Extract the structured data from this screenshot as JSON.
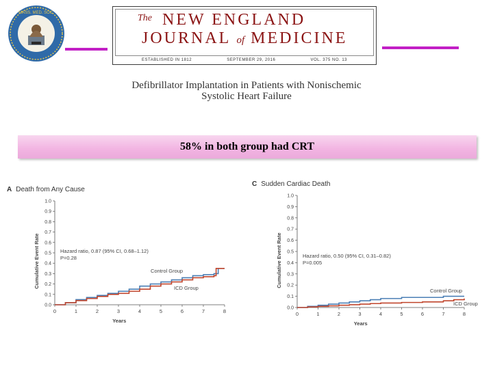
{
  "masthead": {
    "the": "The",
    "line1": "NEW ENGLAND",
    "line2_a": "JOURNAL",
    "line2_of": "of",
    "line2_b": "MEDICINE",
    "meta": [
      "ESTABLISHED IN 1812",
      "SEPTEMBER 29, 2016",
      "VOL. 375 NO. 13"
    ]
  },
  "article": {
    "title_line1": "Defibrillator Implantation in Patients with Nonischemic",
    "title_line2": "Systolic Heart Failure"
  },
  "banner": {
    "text": "58% in both group had CRT"
  },
  "colors": {
    "accent": "#c21fc5",
    "control": "#4a7fb5",
    "icd": "#c0452c",
    "banner": "#f2b4e2"
  },
  "chart_data": [
    {
      "type": "line",
      "panel": "A",
      "title": "Death from Any Cause",
      "xlabel": "Years",
      "ylabel": "Cumulative Event Rate",
      "xlim": [
        0,
        8
      ],
      "ylim": [
        0,
        1.0
      ],
      "x_ticks": [
        "0",
        "1",
        "2",
        "3",
        "4",
        "5",
        "6",
        "7",
        "8"
      ],
      "y_ticks": [
        "0.0",
        "0.1",
        "0.2",
        "0.3",
        "0.4",
        "0.5",
        "0.6",
        "0.7",
        "0.8",
        "0.9",
        "1.0"
      ],
      "annotation_line1": "Hazard ratio, 0.87 (95% CI, 0.68–1.12)",
      "annotation_line2": "P=0.28",
      "series": [
        {
          "name": "Control Group",
          "x": [
            0,
            0.5,
            1,
            1.5,
            2,
            2.5,
            3,
            3.5,
            4,
            4.5,
            5,
            5.5,
            6,
            6.5,
            7,
            7.5,
            7.7,
            8
          ],
          "y": [
            0,
            0.02,
            0.05,
            0.07,
            0.09,
            0.11,
            0.13,
            0.15,
            0.18,
            0.2,
            0.22,
            0.24,
            0.26,
            0.28,
            0.29,
            0.3,
            0.35,
            0.35
          ]
        },
        {
          "name": "ICD Group",
          "x": [
            0,
            0.5,
            1,
            1.5,
            2,
            2.5,
            3,
            3.5,
            4,
            4.5,
            5,
            5.5,
            6,
            6.5,
            7,
            7.5,
            7.6,
            8
          ],
          "y": [
            0,
            0.02,
            0.04,
            0.06,
            0.08,
            0.1,
            0.11,
            0.13,
            0.15,
            0.18,
            0.2,
            0.22,
            0.24,
            0.26,
            0.27,
            0.28,
            0.35,
            0.35
          ]
        }
      ]
    },
    {
      "type": "line",
      "panel": "C",
      "title": "Sudden Cardiac Death",
      "xlabel": "Years",
      "ylabel": "Cumulative Event Rate",
      "xlim": [
        0,
        8
      ],
      "ylim": [
        0,
        1.0
      ],
      "x_ticks": [
        "0",
        "1",
        "2",
        "3",
        "4",
        "5",
        "6",
        "7",
        "8"
      ],
      "y_ticks": [
        "0.0",
        "0.1",
        "0.2",
        "0.3",
        "0.4",
        "0.5",
        "0.6",
        "0.7",
        "0.8",
        "0.9",
        "1.0"
      ],
      "annotation_line1": "Hazard ratio, 0.50 (95% CI, 0.31–0.82)",
      "annotation_line2": "P=0.005",
      "series": [
        {
          "name": "Control Group",
          "x": [
            0,
            0.5,
            1,
            1.5,
            2,
            2.5,
            3,
            3.5,
            4,
            5,
            6,
            7,
            7.5,
            8
          ],
          "y": [
            0,
            0.01,
            0.02,
            0.03,
            0.04,
            0.05,
            0.06,
            0.07,
            0.08,
            0.09,
            0.09,
            0.1,
            0.1,
            0.1
          ]
        },
        {
          "name": "ICD Group",
          "x": [
            0,
            0.5,
            1,
            1.5,
            2,
            2.5,
            3,
            3.5,
            4,
            5,
            6,
            7,
            7.5,
            8
          ],
          "y": [
            0,
            0.005,
            0.01,
            0.015,
            0.02,
            0.025,
            0.03,
            0.035,
            0.04,
            0.045,
            0.05,
            0.06,
            0.07,
            0.08
          ]
        }
      ]
    }
  ]
}
